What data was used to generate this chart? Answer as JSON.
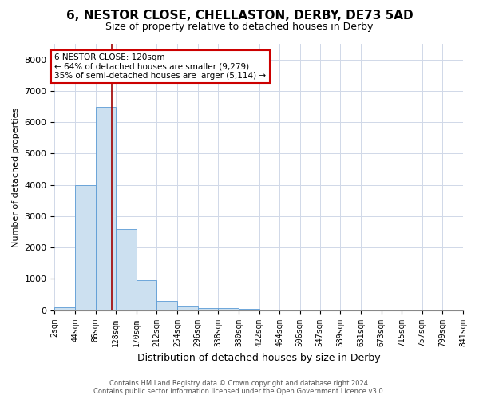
{
  "title1": "6, NESTOR CLOSE, CHELLASTON, DERBY, DE73 5AD",
  "title2": "Size of property relative to detached houses in Derby",
  "xlabel": "Distribution of detached houses by size in Derby",
  "ylabel": "Number of detached properties",
  "bin_edges": [
    2,
    44,
    86,
    128,
    170,
    212,
    254,
    296,
    338,
    380,
    422,
    464,
    506,
    547,
    589,
    631,
    673,
    715,
    757,
    799,
    841
  ],
  "bar_heights": [
    100,
    4000,
    6500,
    2600,
    950,
    310,
    130,
    80,
    60,
    55,
    0,
    0,
    0,
    0,
    0,
    0,
    0,
    0,
    0,
    0
  ],
  "bar_color": "#cce0f0",
  "bar_edgecolor": "#5b9bd5",
  "vline_x": 120,
  "vline_color": "#a00000",
  "ylim": [
    0,
    8500
  ],
  "yticks": [
    0,
    1000,
    2000,
    3000,
    4000,
    5000,
    6000,
    7000,
    8000
  ],
  "annotation_text": "6 NESTOR CLOSE: 120sqm\n← 64% of detached houses are smaller (9,279)\n35% of semi-detached houses are larger (5,114) →",
  "annotation_box_color": "#ffffff",
  "annotation_box_edgecolor": "#cc0000",
  "footer_line1": "Contains HM Land Registry data © Crown copyright and database right 2024.",
  "footer_line2": "Contains public sector information licensed under the Open Government Licence v3.0.",
  "background_color": "#ffffff",
  "grid_color": "#d0d8e8",
  "title1_fontsize": 11,
  "title2_fontsize": 9,
  "xlabel_fontsize": 9,
  "ylabel_fontsize": 8,
  "tick_fontsize": 7,
  "footer_fontsize": 6,
  "ann_fontsize": 7.5
}
